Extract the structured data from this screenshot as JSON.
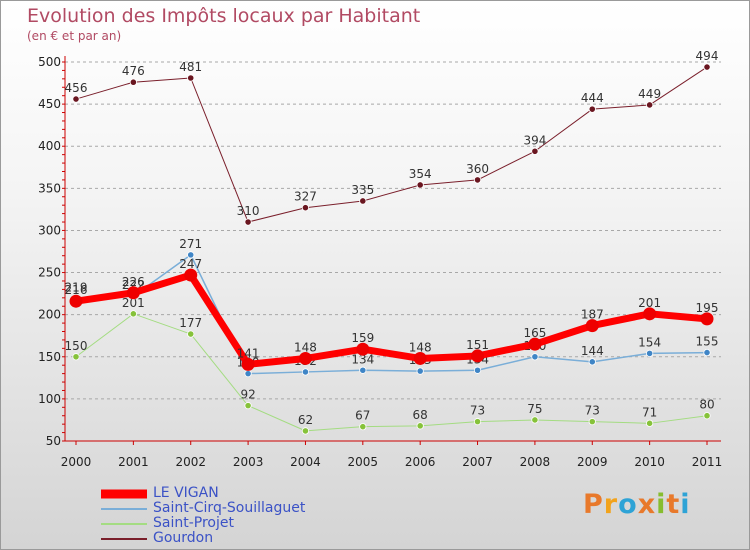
{
  "title": "Evolution des Impôts locaux par Habitant",
  "subtitle": "(en € et par an)",
  "logo": {
    "letters": [
      "P",
      "r",
      "o",
      "x",
      "i",
      "t",
      "i"
    ],
    "colors": [
      "#e8792b",
      "#f2a31c",
      "#2ea3d6",
      "#e8792b",
      "#86bd2f",
      "#e8792b",
      "#2ea3d6"
    ]
  },
  "chart_data": {
    "type": "line",
    "title": "Evolution des Impôts locaux par Habitant",
    "subtitle": "(en € et par an)",
    "xlabel": "",
    "ylabel": "",
    "categories": [
      "2000",
      "2001",
      "2002",
      "2003",
      "2004",
      "2005",
      "2006",
      "2007",
      "2008",
      "2009",
      "2010",
      "2011"
    ],
    "yticks": [
      "50",
      "100",
      "150",
      "200",
      "250",
      "300",
      "350",
      "400",
      "450",
      "500"
    ],
    "ylim": [
      50,
      500
    ],
    "grid": "horizontal dashed",
    "legend_position": "bottom-left",
    "series": [
      {
        "name": "Gourdon",
        "color": "#7a1f2b",
        "marker_color": "#6a1620",
        "width": 1,
        "values": [
          456,
          476,
          481,
          310,
          327,
          335,
          354,
          360,
          394,
          444,
          449,
          494
        ],
        "labels": [
          "456",
          "476",
          "481",
          "310",
          "327",
          "335",
          "354",
          "360",
          "394",
          "444",
          "449",
          "494"
        ]
      },
      {
        "name": "Saint-Projet",
        "color": "#a4dc82",
        "marker_color": "#86c23a",
        "width": 1,
        "values": [
          150,
          201,
          177,
          92,
          62,
          67,
          68,
          73,
          75,
          73,
          71,
          80
        ],
        "labels": [
          "150",
          "201",
          "177",
          "92",
          "62",
          "67",
          "68",
          "73",
          "75",
          "73",
          "71",
          "80"
        ]
      },
      {
        "name": "Saint-Cirq-Souillaguet",
        "color": "#7aaed8",
        "marker_color": "#3f85c6",
        "width": 1.5,
        "values": [
          219,
          222,
          271,
          130,
          132,
          134,
          133,
          134,
          150,
          144,
          154,
          155
        ],
        "labels": [
          "219",
          "222",
          "271",
          "130",
          "132",
          "134",
          "133",
          "134",
          "150",
          "144",
          "154",
          "155"
        ]
      },
      {
        "name": "LE VIGAN",
        "color": "#ff0000",
        "marker_color": "#ee0000",
        "width": 7,
        "values": [
          216,
          226,
          247,
          141,
          148,
          159,
          148,
          151,
          165,
          187,
          201,
          195
        ],
        "labels": [
          "216",
          "226",
          "247",
          "141",
          "148",
          "159",
          "148",
          "151",
          "165",
          "187",
          "201",
          "195"
        ]
      }
    ]
  }
}
